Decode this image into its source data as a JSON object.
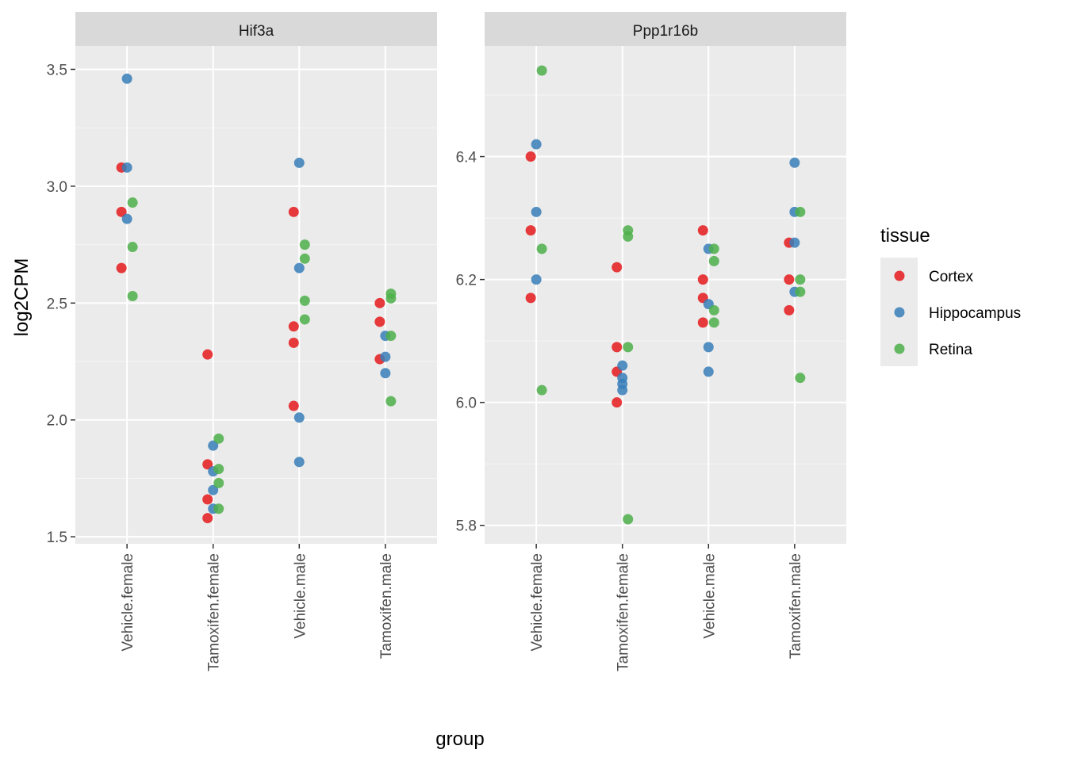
{
  "chart_data": {
    "type": "scatter",
    "xlabel": "group",
    "ylabel": "log2CPM",
    "categories": [
      "Vehicle.female",
      "Tamoxifen.female",
      "Vehicle.male",
      "Tamoxifen.male"
    ],
    "grid": true,
    "legend": {
      "title": "tissue",
      "position": "right",
      "entries": [
        "Cortex",
        "Hippocampus",
        "Retina"
      ]
    },
    "colors": {
      "Cortex": "#E41A1C",
      "Hippocampus": "#377EB8",
      "Retina": "#4DAF4A"
    },
    "panels": [
      {
        "strip": "Hif3a",
        "ylim": [
          1.47,
          3.6
        ],
        "yticks": [
          1.5,
          2.0,
          2.5,
          3.0,
          3.5
        ],
        "ytick_labels": [
          "1.5",
          "2.0",
          "2.5",
          "3.0",
          "3.5"
        ],
        "series": [
          {
            "name": "Cortex",
            "points": [
              [
                "Vehicle.female",
                3.08
              ],
              [
                "Vehicle.female",
                2.89
              ],
              [
                "Vehicle.female",
                2.65
              ],
              [
                "Tamoxifen.female",
                2.28
              ],
              [
                "Tamoxifen.female",
                1.81
              ],
              [
                "Tamoxifen.female",
                1.66
              ],
              [
                "Tamoxifen.female",
                1.58
              ],
              [
                "Vehicle.male",
                2.89
              ],
              [
                "Vehicle.male",
                2.4
              ],
              [
                "Vehicle.male",
                2.33
              ],
              [
                "Vehicle.male",
                2.06
              ],
              [
                "Tamoxifen.male",
                2.5
              ],
              [
                "Tamoxifen.male",
                2.42
              ],
              [
                "Tamoxifen.male",
                2.26
              ]
            ]
          },
          {
            "name": "Hippocampus",
            "points": [
              [
                "Vehicle.female",
                3.46
              ],
              [
                "Vehicle.female",
                3.08
              ],
              [
                "Vehicle.female",
                2.86
              ],
              [
                "Tamoxifen.female",
                1.89
              ],
              [
                "Tamoxifen.female",
                1.78
              ],
              [
                "Tamoxifen.female",
                1.7
              ],
              [
                "Tamoxifen.female",
                1.62
              ],
              [
                "Vehicle.male",
                3.1
              ],
              [
                "Vehicle.male",
                2.65
              ],
              [
                "Vehicle.male",
                2.01
              ],
              [
                "Vehicle.male",
                1.82
              ],
              [
                "Tamoxifen.male",
                2.36
              ],
              [
                "Tamoxifen.male",
                2.27
              ],
              [
                "Tamoxifen.male",
                2.2
              ]
            ]
          },
          {
            "name": "Retina",
            "points": [
              [
                "Vehicle.female",
                2.93
              ],
              [
                "Vehicle.female",
                2.74
              ],
              [
                "Vehicle.female",
                2.53
              ],
              [
                "Tamoxifen.female",
                1.92
              ],
              [
                "Tamoxifen.female",
                1.79
              ],
              [
                "Tamoxifen.female",
                1.73
              ],
              [
                "Tamoxifen.female",
                1.62
              ],
              [
                "Vehicle.male",
                2.75
              ],
              [
                "Vehicle.male",
                2.69
              ],
              [
                "Vehicle.male",
                2.51
              ],
              [
                "Vehicle.male",
                2.43
              ],
              [
                "Tamoxifen.male",
                2.54
              ],
              [
                "Tamoxifen.male",
                2.52
              ],
              [
                "Tamoxifen.male",
                2.36
              ],
              [
                "Tamoxifen.male",
                2.08
              ]
            ]
          }
        ]
      },
      {
        "strip": "Ppp1r16b",
        "ylim": [
          5.77,
          6.58
        ],
        "yticks": [
          5.8,
          6.0,
          6.2,
          6.4
        ],
        "ytick_labels": [
          "5.8",
          "6.0",
          "6.2",
          "6.4"
        ],
        "series": [
          {
            "name": "Cortex",
            "points": [
              [
                "Vehicle.female",
                6.4
              ],
              [
                "Vehicle.female",
                6.28
              ],
              [
                "Vehicle.female",
                6.17
              ],
              [
                "Tamoxifen.female",
                6.22
              ],
              [
                "Tamoxifen.female",
                6.09
              ],
              [
                "Tamoxifen.female",
                6.05
              ],
              [
                "Tamoxifen.female",
                6.0
              ],
              [
                "Vehicle.male",
                6.28
              ],
              [
                "Vehicle.male",
                6.2
              ],
              [
                "Vehicle.male",
                6.17
              ],
              [
                "Vehicle.male",
                6.13
              ],
              [
                "Tamoxifen.male",
                6.26
              ],
              [
                "Tamoxifen.male",
                6.2
              ],
              [
                "Tamoxifen.male",
                6.15
              ]
            ]
          },
          {
            "name": "Hippocampus",
            "points": [
              [
                "Vehicle.female",
                6.42
              ],
              [
                "Vehicle.female",
                6.31
              ],
              [
                "Vehicle.female",
                6.2
              ],
              [
                "Tamoxifen.female",
                6.06
              ],
              [
                "Tamoxifen.female",
                6.04
              ],
              [
                "Tamoxifen.female",
                6.03
              ],
              [
                "Tamoxifen.female",
                6.02
              ],
              [
                "Vehicle.male",
                6.25
              ],
              [
                "Vehicle.male",
                6.16
              ],
              [
                "Vehicle.male",
                6.09
              ],
              [
                "Vehicle.male",
                6.05
              ],
              [
                "Tamoxifen.male",
                6.39
              ],
              [
                "Tamoxifen.male",
                6.31
              ],
              [
                "Tamoxifen.male",
                6.26
              ],
              [
                "Tamoxifen.male",
                6.18
              ]
            ]
          },
          {
            "name": "Retina",
            "points": [
              [
                "Vehicle.female",
                6.54
              ],
              [
                "Vehicle.female",
                6.25
              ],
              [
                "Vehicle.female",
                6.02
              ],
              [
                "Tamoxifen.female",
                6.28
              ],
              [
                "Tamoxifen.female",
                6.27
              ],
              [
                "Tamoxifen.female",
                6.09
              ],
              [
                "Tamoxifen.female",
                5.81
              ],
              [
                "Vehicle.male",
                6.25
              ],
              [
                "Vehicle.male",
                6.23
              ],
              [
                "Vehicle.male",
                6.15
              ],
              [
                "Vehicle.male",
                6.13
              ],
              [
                "Tamoxifen.male",
                6.31
              ],
              [
                "Tamoxifen.male",
                6.2
              ],
              [
                "Tamoxifen.male",
                6.18
              ],
              [
                "Tamoxifen.male",
                6.04
              ]
            ]
          }
        ]
      }
    ]
  }
}
